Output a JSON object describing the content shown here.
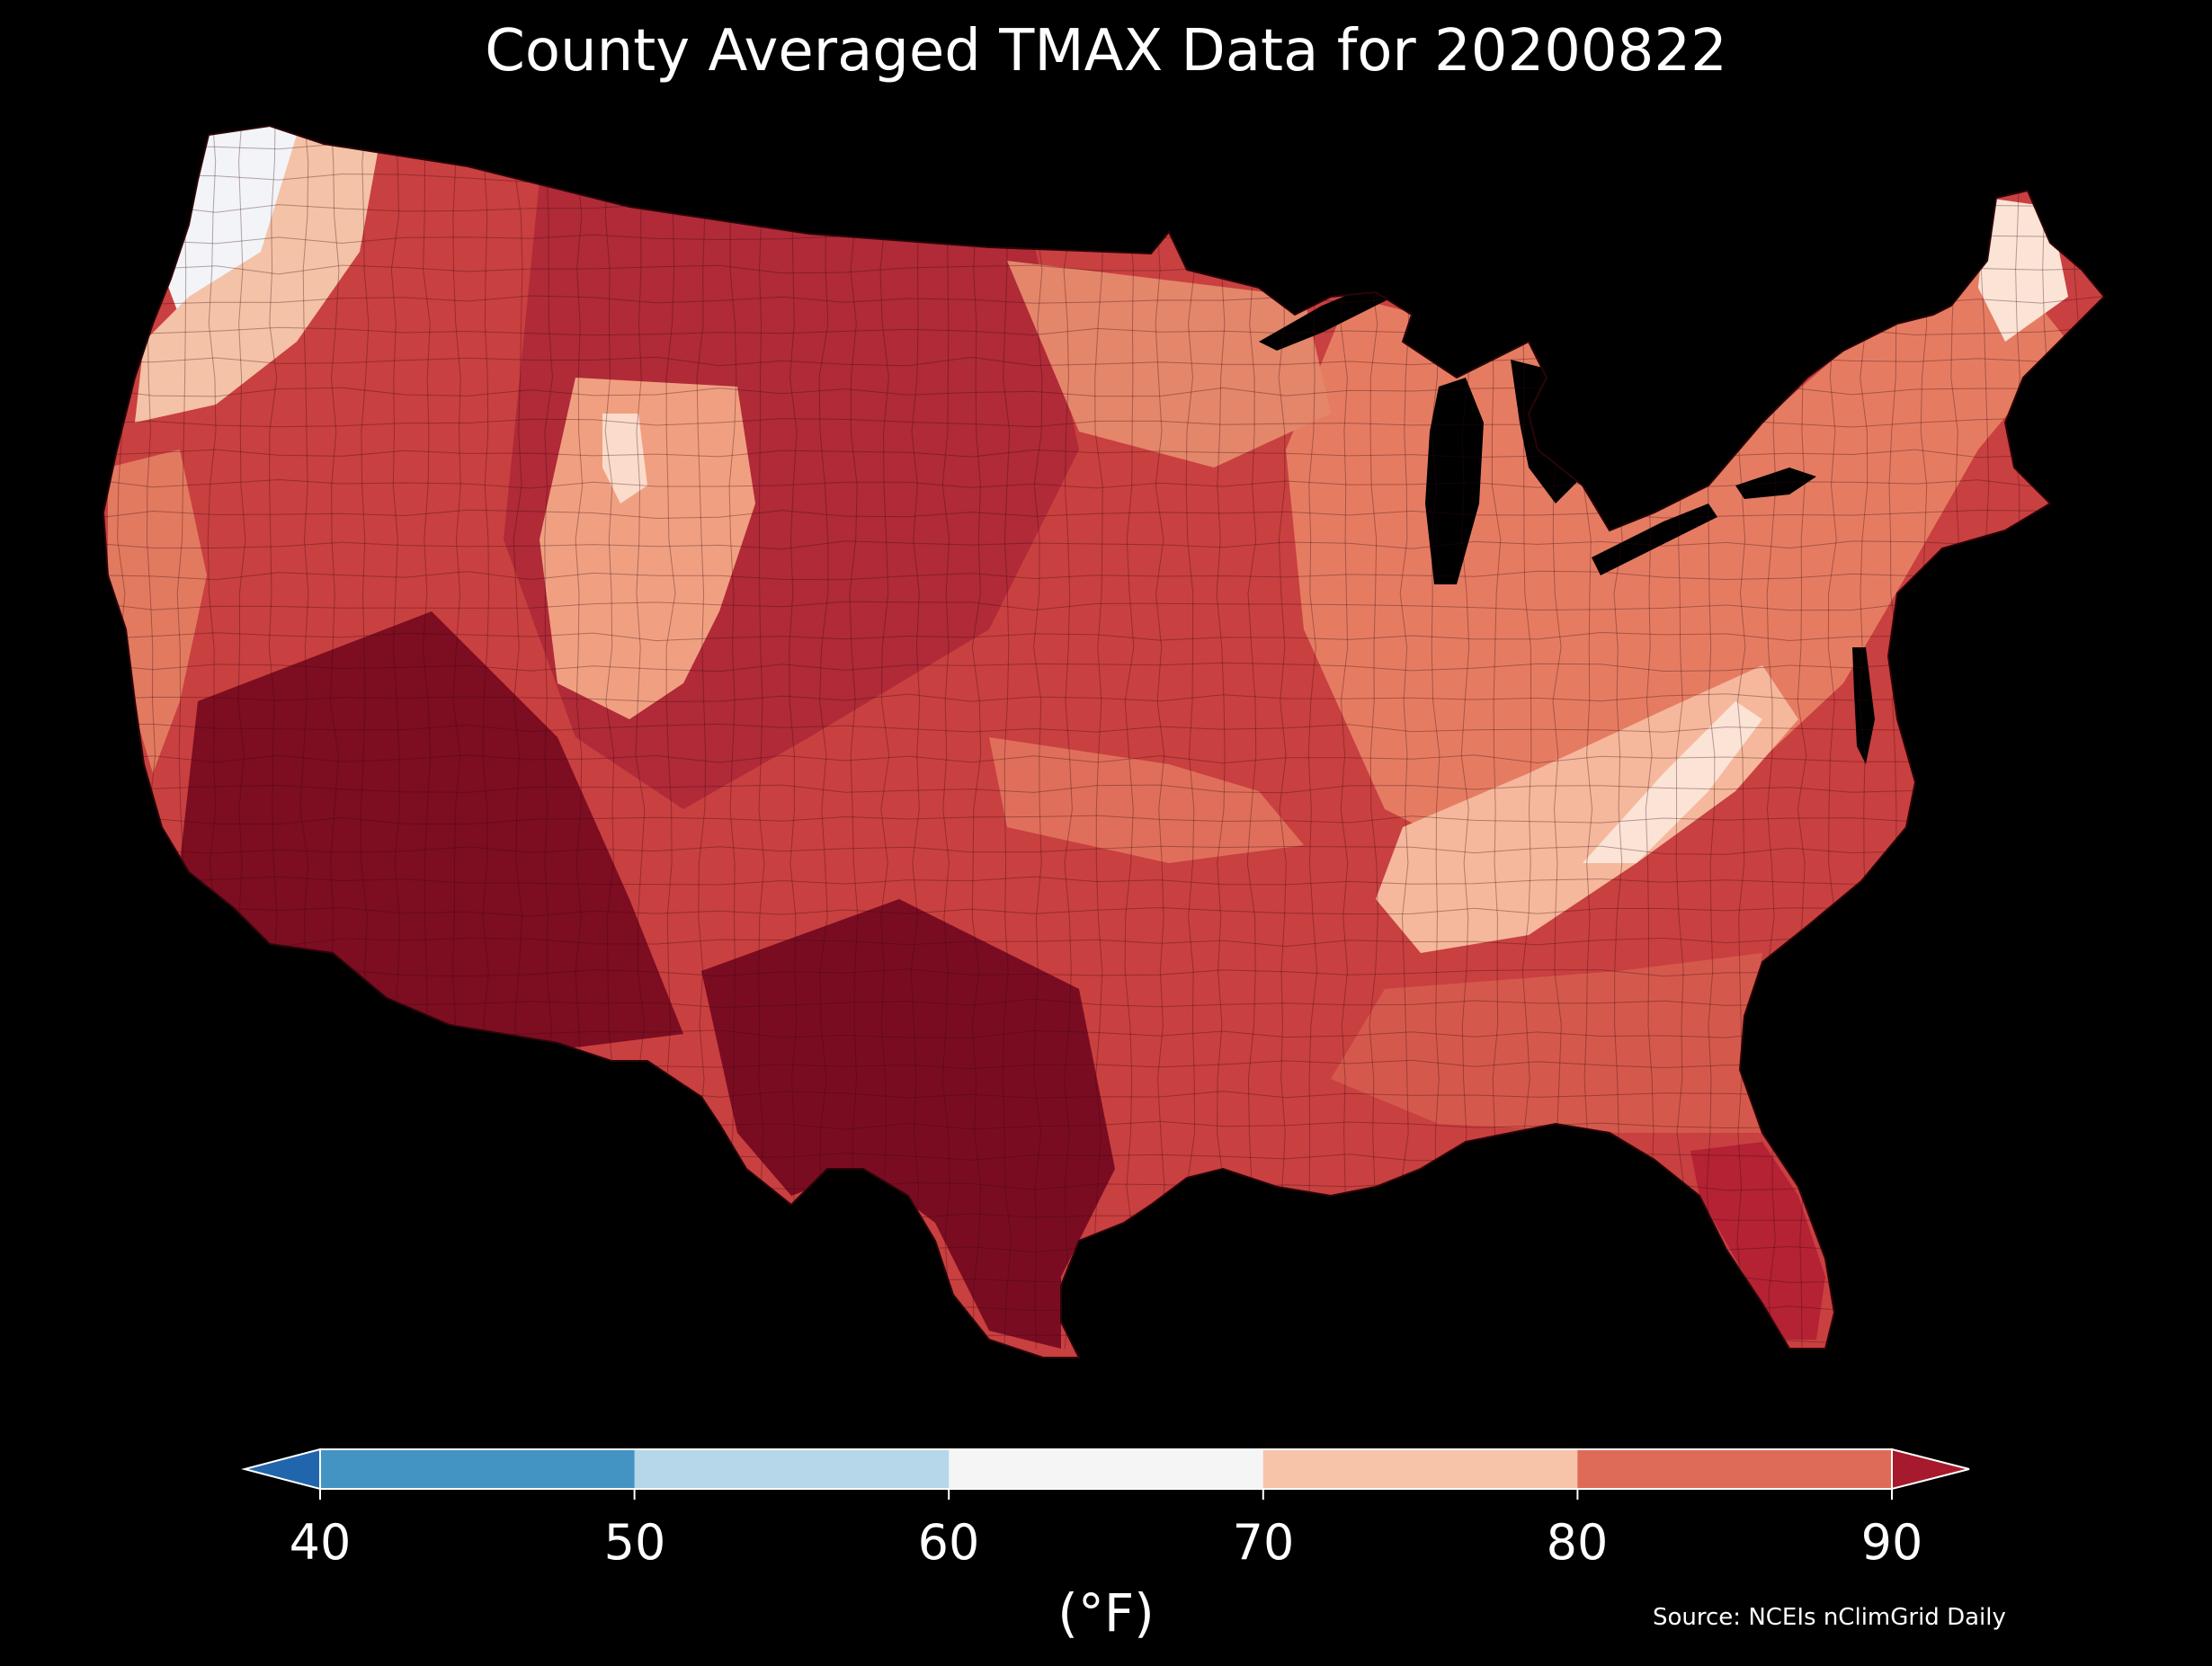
{
  "title": "County Averaged TMAX Data for 20200822",
  "colorbar": {
    "ticks": [
      "40",
      "50",
      "60",
      "70",
      "80",
      "90"
    ],
    "unit": "(°F)",
    "bins": [
      {
        "from": "40",
        "to": "50",
        "color": "#4393c3"
      },
      {
        "from": "50",
        "to": "60",
        "color": "#b6d7e9"
      },
      {
        "from": "60",
        "to": "70",
        "color": "#f5f5f5"
      },
      {
        "from": "70",
        "to": "80",
        "color": "#f8c4a9"
      },
      {
        "from": "80",
        "to": "90",
        "color": "#de6b57"
      }
    ],
    "under_color": "#2166ac",
    "over_color": "#a7192d"
  },
  "source": "Source: NCEIs nClimGrid Daily",
  "colors": {
    "background": "#000000",
    "land_base": "#c94040",
    "very_hot": "#6e0a1e",
    "hot": "#a7192d",
    "warm": "#d3574a",
    "mild": "#f0a081",
    "cool": "#fbe3d6",
    "cold": "#f2f4f7"
  }
}
